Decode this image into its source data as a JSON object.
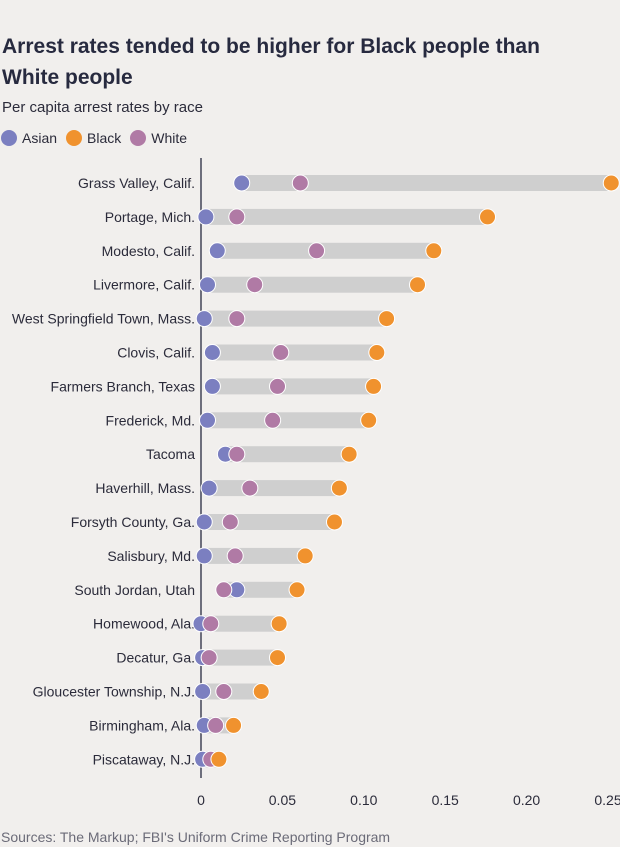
{
  "title": "Arrest rates tended to be higher for Black people than White people",
  "subtitle": "Per capita arrest rates by race",
  "source": "Sources: The Markup; FBI's Uniform Crime Reporting Program",
  "legend": [
    {
      "name": "Asian",
      "color": "#7b7fc0"
    },
    {
      "name": "Black",
      "color": "#f0922e"
    },
    {
      "name": "White",
      "color": "#b07aa5"
    }
  ],
  "chart_data": {
    "type": "dot",
    "title": "Arrest rates tended to be higher for Black people than White people",
    "subtitle": "Per capita arrest rates by race",
    "xlabel": "",
    "ylabel": "",
    "xlim": [
      0,
      0.25
    ],
    "xticks": [
      0,
      0.05,
      0.1,
      0.15,
      0.2,
      0.25
    ],
    "xtick_labels": [
      "0",
      "0.05",
      "0.10",
      "0.15",
      "0.20",
      "0.25"
    ],
    "grid": false,
    "legend_position": "top-left",
    "categories": [
      "Grass Valley, Calif.",
      "Portage, Mich.",
      "Modesto, Calif.",
      "Livermore, Calif.",
      "West Springfield Town, Mass.",
      "Clovis, Calif.",
      "Farmers Branch, Texas",
      "Frederick, Md.",
      "Tacoma",
      "Haverhill, Mass.",
      "Forsyth County, Ga.",
      "Salisbury, Md.",
      "South Jordan, Utah",
      "Homewood, Ala.",
      "Decatur, Ga.",
      "Gloucester Township, N.J.",
      "Birmingham, Ala.",
      "Piscataway, N.J."
    ],
    "series": [
      {
        "name": "Asian",
        "color": "#7b7fc0",
        "values": [
          0.025,
          0.003,
          0.01,
          0.004,
          0.002,
          0.007,
          0.007,
          0.004,
          0.015,
          0.005,
          0.002,
          0.002,
          0.022,
          0.0,
          0.001,
          0.001,
          0.002,
          0.001
        ]
      },
      {
        "name": "White",
        "color": "#b07aa5",
        "values": [
          0.061,
          0.022,
          0.071,
          0.033,
          0.022,
          0.049,
          0.047,
          0.044,
          0.022,
          0.03,
          0.018,
          0.021,
          0.014,
          0.006,
          0.005,
          0.014,
          0.009,
          0.006
        ]
      },
      {
        "name": "Black",
        "color": "#f0922e",
        "values": [
          0.252,
          0.176,
          0.143,
          0.133,
          0.114,
          0.108,
          0.106,
          0.103,
          0.091,
          0.085,
          0.082,
          0.064,
          0.059,
          0.048,
          0.047,
          0.037,
          0.02,
          0.011
        ]
      }
    ]
  }
}
